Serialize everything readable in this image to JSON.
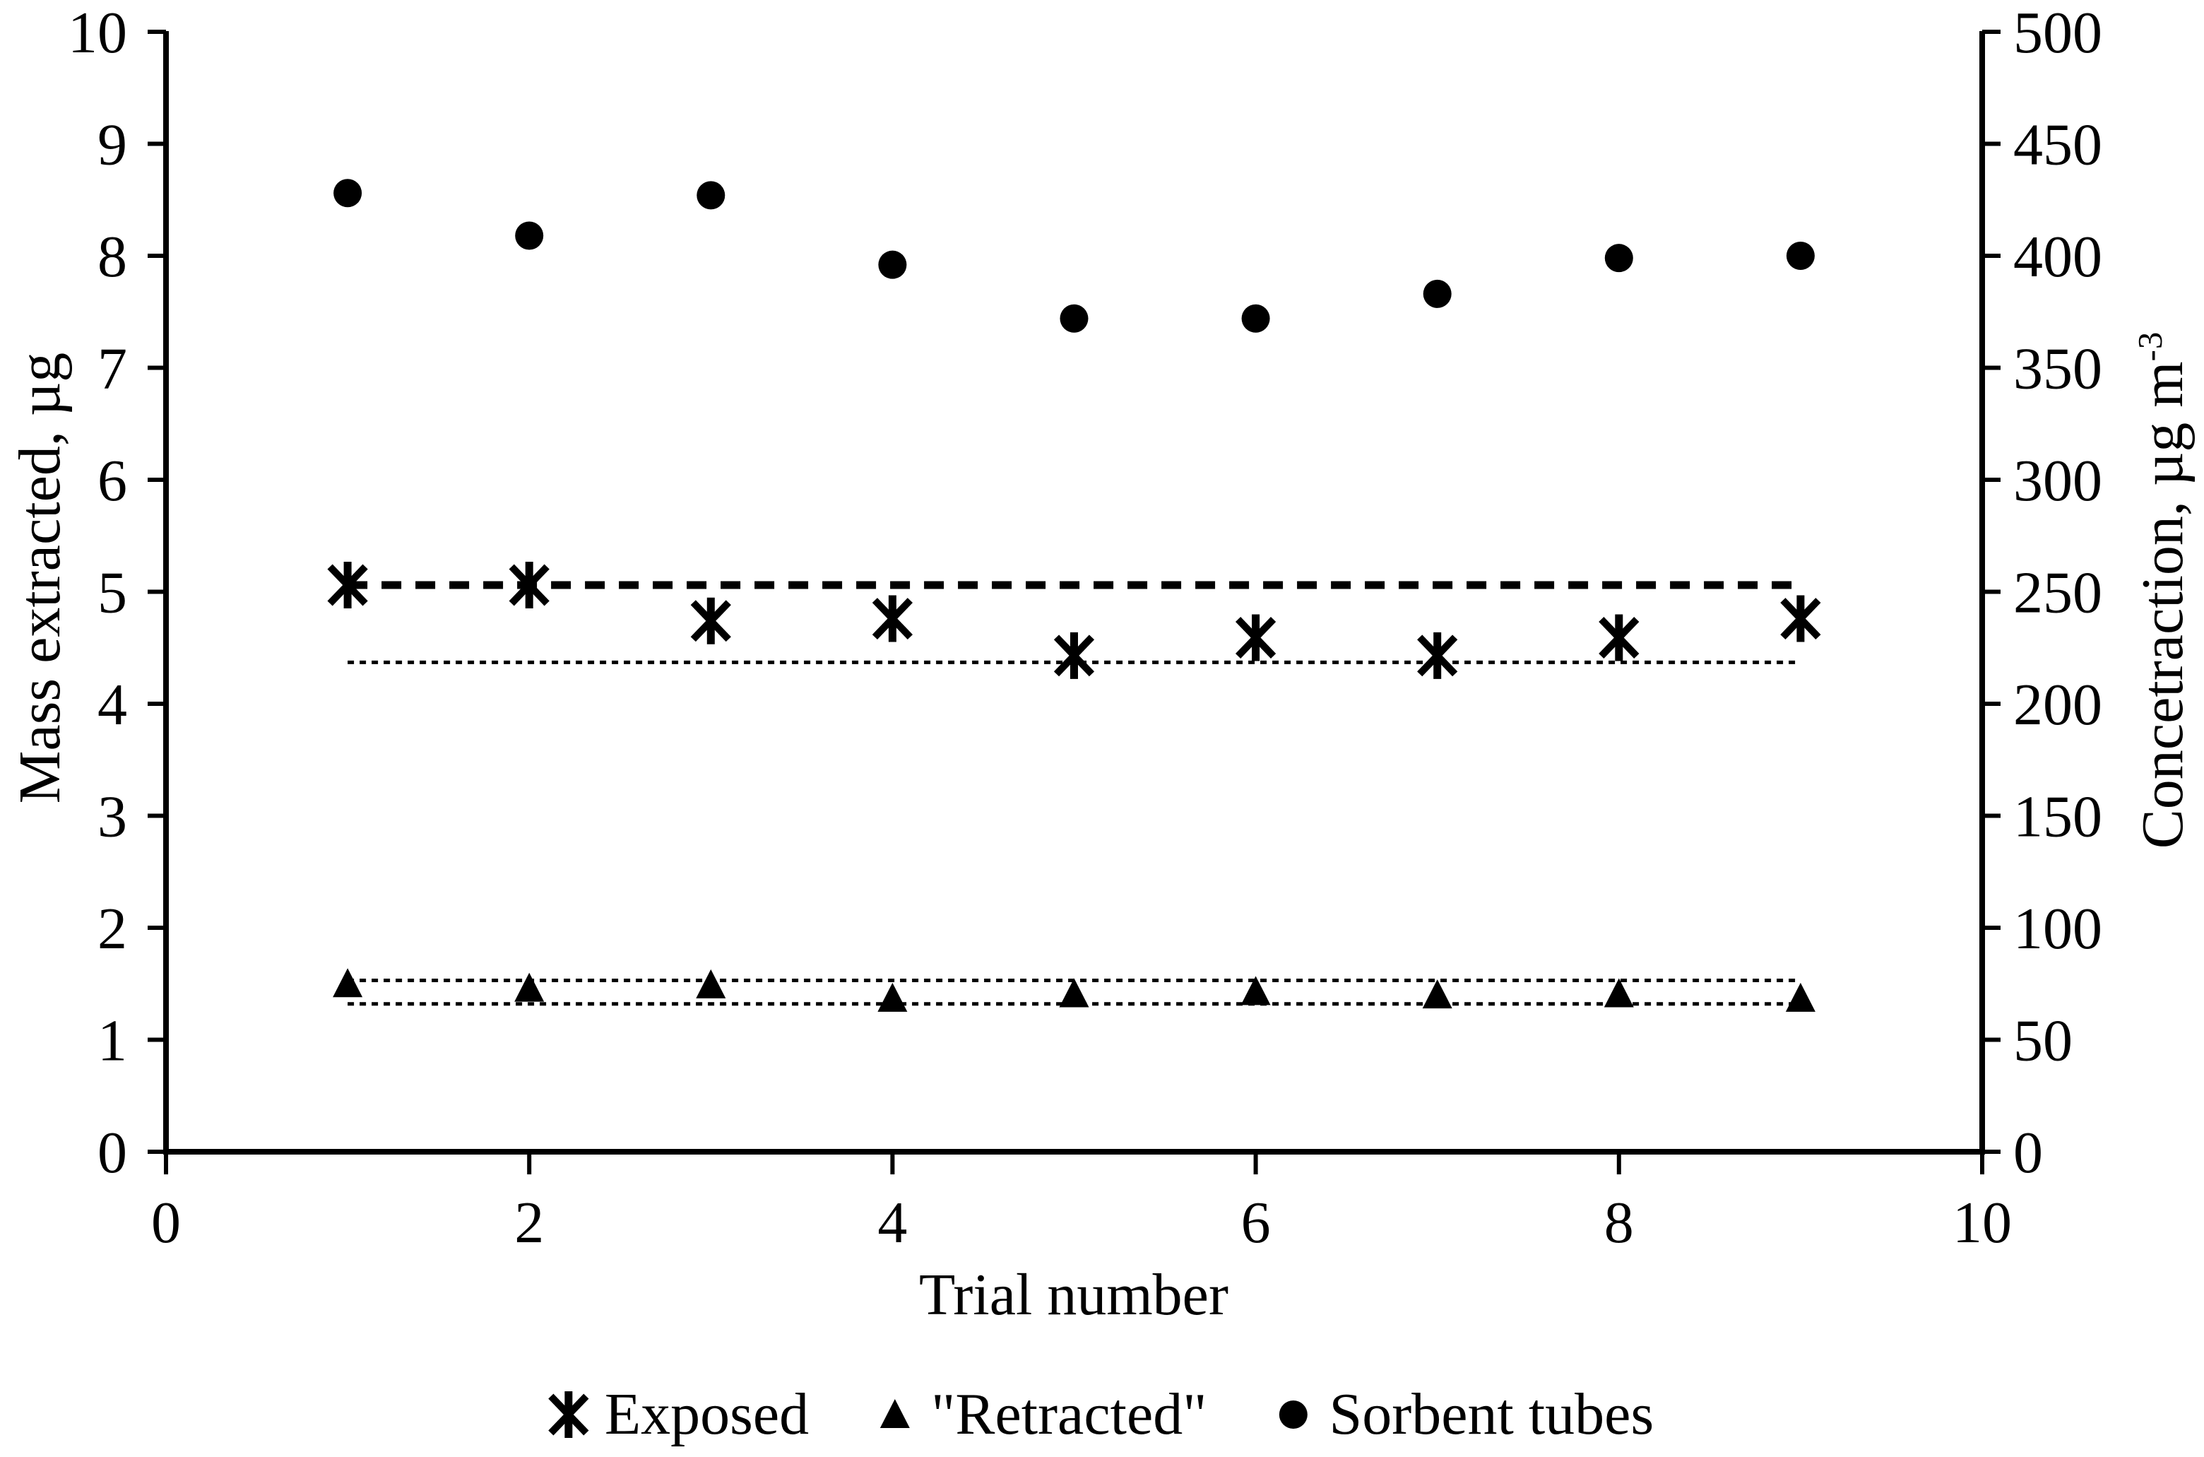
{
  "figure": {
    "background": "#ffffff",
    "ink_color": "#000000"
  },
  "chart_data": {
    "type": "scatter",
    "title": "",
    "xlabel": "Trial number",
    "ylabel_left": "Mass extracted, µg",
    "ylabel_right_main": "Concetraction, µg m",
    "ylabel_right_sup": "-3",
    "grid": false,
    "legend_position": "bottom-center",
    "x": [
      1,
      2,
      3,
      4,
      5,
      6,
      7,
      8,
      9
    ],
    "x_axis": {
      "min": 0,
      "max": 10,
      "tick_step": 2,
      "ticks": [
        0,
        2,
        4,
        6,
        8,
        10
      ]
    },
    "y_left_axis": {
      "min": 0,
      "max": 10,
      "tick_step": 1,
      "ticks": [
        0,
        1,
        2,
        3,
        4,
        5,
        6,
        7,
        8,
        9,
        10
      ]
    },
    "y_right_axis": {
      "min": 0,
      "max": 500,
      "tick_step": 50,
      "ticks": [
        0,
        50,
        100,
        150,
        200,
        250,
        300,
        350,
        400,
        450,
        500
      ]
    },
    "series": [
      {
        "name": "Exposed",
        "marker": "star6",
        "axis": "left",
        "values": [
          5.06,
          5.06,
          4.74,
          4.76,
          4.43,
          4.59,
          4.43,
          4.59,
          4.76
        ]
      },
      {
        "name": "\"Retracted\"",
        "marker": "triangle",
        "axis": "left",
        "values": [
          1.5,
          1.46,
          1.49,
          1.37,
          1.41,
          1.43,
          1.4,
          1.41,
          1.37
        ]
      },
      {
        "name": "Sorbent tubes",
        "marker": "circle",
        "axis": "right",
        "values": [
          428,
          409,
          427,
          396,
          372,
          372,
          383,
          399,
          400
        ]
      }
    ],
    "reference_lines": [
      {
        "y": 5.06,
        "axis": "left",
        "style": "dashed-heavy",
        "x_start": 1,
        "x_end": 9
      },
      {
        "y": 4.37,
        "axis": "left",
        "style": "dotted-fine",
        "x_start": 1,
        "x_end": 9
      },
      {
        "y": 1.53,
        "axis": "left",
        "style": "dotted-fine",
        "x_start": 1,
        "x_end": 9
      },
      {
        "y": 1.32,
        "axis": "left",
        "style": "dotted-fine",
        "x_start": 1,
        "x_end": 9
      }
    ],
    "legend": [
      {
        "marker": "star6",
        "label": "Exposed"
      },
      {
        "marker": "triangle",
        "label": "\"Retracted\""
      },
      {
        "marker": "circle",
        "label": "Sorbent tubes"
      }
    ]
  }
}
